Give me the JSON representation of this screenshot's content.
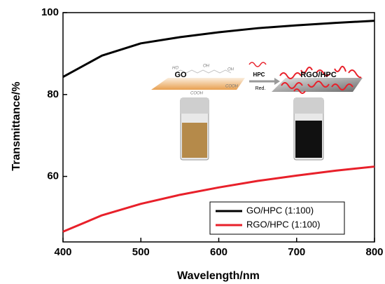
{
  "chart_data": {
    "type": "line",
    "x_label": "Wavelength/nm",
    "y_label": "Transmittance/%",
    "x": [
      400,
      450,
      500,
      550,
      600,
      650,
      700,
      750,
      800
    ],
    "series": [
      {
        "name": "GO/HPC (1:100)",
        "color": "#000000",
        "values": [
          84.3,
          89.5,
          92.5,
          94,
          95.2,
          96.2,
          96.9,
          97.5,
          98
        ]
      },
      {
        "name": "RGO/HPC (1:100)",
        "color": "#e8202a",
        "values": [
          46.5,
          50.5,
          53.3,
          55.5,
          57.3,
          58.9,
          60.2,
          61.4,
          62.4
        ]
      }
    ],
    "xlim": [
      400,
      800
    ],
    "xticks": [
      400,
      500,
      600,
      700,
      800
    ],
    "ylim": [
      44,
      100
    ],
    "yticks": [
      60,
      80,
      100
    ],
    "legend": "lower right",
    "inset_labels": [
      "GO",
      "HPC",
      "Red.",
      "RGO/HPC",
      "HO",
      "OH",
      "OH",
      "COOH",
      "COOH"
    ]
  }
}
